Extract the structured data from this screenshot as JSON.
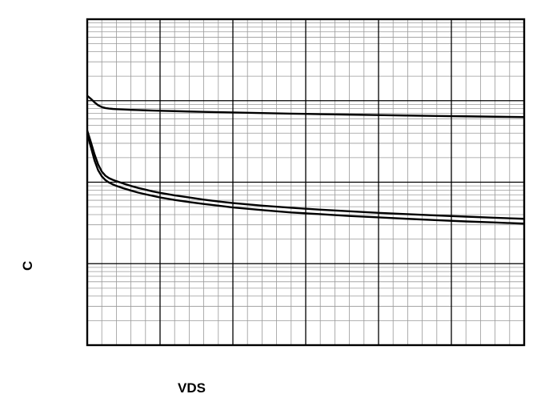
{
  "chart_data": {
    "type": "line",
    "title": "",
    "xlabel": "VDS",
    "ylabel": "C",
    "xscale": "linear",
    "yscale": "log",
    "xlim": [
      0,
      30
    ],
    "ylim": [
      1,
      10000
    ],
    "grid": true,
    "x_tick_labels": [
      "",
      "",
      "",
      "",
      "",
      "",
      ""
    ],
    "y_tick_labels": [
      "",
      "",
      "",
      "",
      ""
    ],
    "annotations": [
      "",
      "",
      ""
    ],
    "series": [
      {
        "name": "",
        "x": [
          0,
          0.25,
          0.5,
          0.75,
          1,
          1.25,
          1.5,
          1.75,
          2,
          2.5,
          3,
          3.5,
          4,
          4.5,
          5,
          6,
          7,
          8,
          9,
          10,
          12,
          14,
          16,
          18,
          20,
          22,
          24,
          26,
          28,
          30
        ],
        "y": [
          1150,
          1055,
          955,
          880,
          835,
          812,
          800,
          793,
          788,
          780,
          772,
          767,
          762,
          757,
          753,
          745,
          737,
          730,
          723,
          717,
          705,
          694,
          684,
          675,
          666,
          658,
          650,
          643,
          636,
          630
        ]
      },
      {
        "name": "",
        "x": [
          0,
          0.25,
          0.5,
          0.75,
          1,
          1.25,
          1.5,
          1.75,
          2,
          2.5,
          3,
          3.5,
          4,
          4.5,
          5,
          6,
          7,
          8,
          9,
          10,
          12,
          14,
          16,
          18,
          20,
          22,
          24,
          26,
          28,
          30
        ],
        "y": [
          430,
          310,
          220,
          165,
          135,
          120,
          112,
          107,
          103,
          96,
          90,
          85,
          81,
          77,
          74,
          69,
          65,
          61,
          58,
          55.5,
          51.5,
          48.5,
          46,
          44,
          42,
          40.5,
          39,
          37.8,
          36.6,
          35.5
        ]
      },
      {
        "name": "",
        "x": [
          0,
          0.25,
          0.5,
          0.75,
          1,
          1.25,
          1.5,
          1.75,
          2,
          2.5,
          3,
          3.5,
          4,
          4.5,
          5,
          6,
          7,
          8,
          9,
          10,
          12,
          14,
          16,
          18,
          20,
          22,
          24,
          26,
          28,
          30
        ],
        "y": [
          390,
          270,
          185,
          140,
          118,
          106,
          99,
          94,
          90,
          84,
          79,
          74.5,
          71,
          68,
          65,
          60.5,
          57,
          54,
          51.5,
          49,
          45.5,
          42.5,
          40.5,
          38.5,
          37,
          35.5,
          34.2,
          33,
          32,
          31
        ]
      }
    ]
  }
}
